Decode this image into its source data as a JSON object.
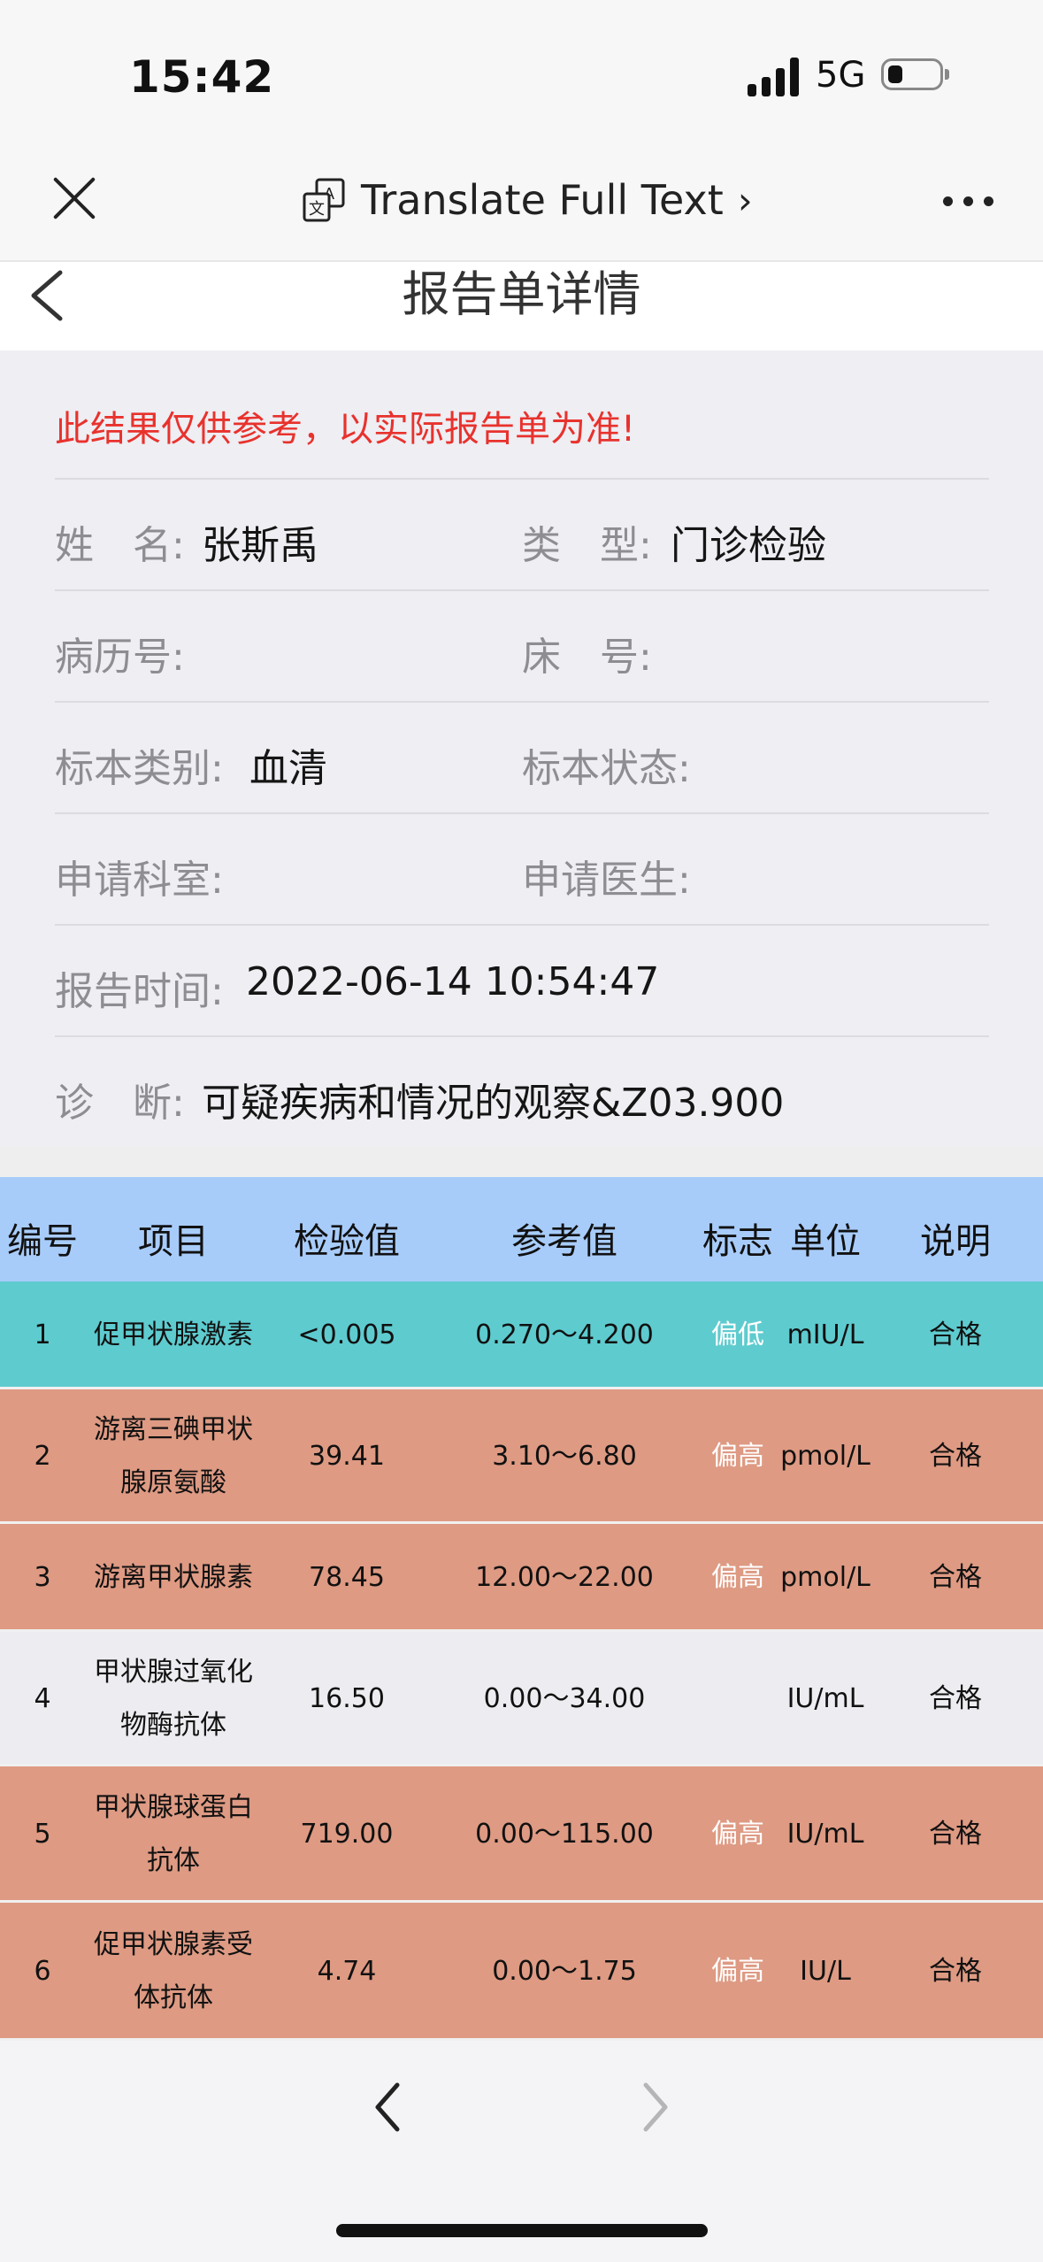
{
  "status_bar": {
    "time": "15:42",
    "network": "5G"
  },
  "nav_bar": {
    "translate_label": "Translate Full Text",
    "translate_chevron": "›"
  },
  "page": {
    "title": "报告单详情",
    "disclaimer": "此结果仅供参考，以实际报告单为准!",
    "fields": {
      "name_label": "姓　名:",
      "name_value": "张斯禹",
      "type_label": "类　型:",
      "type_value": "门诊检验",
      "record_label": "病历号:",
      "record_value": "",
      "bed_label": "床　号:",
      "bed_value": "",
      "specimen_label": "标本类别:",
      "specimen_value": "血清",
      "specimen_state_label": "标本状态:",
      "specimen_state_value": "",
      "dept_label": "申请科室:",
      "dept_value": "",
      "doctor_label": "申请医生:",
      "doctor_value": "",
      "time_label": "报告时间:",
      "time_value": "2022-06-14 10:54:47",
      "diag_label": "诊　断:",
      "diag_value": "可疑疾病和情况的观察&Z03.900"
    }
  },
  "table": {
    "headers": [
      "编号",
      "项目",
      "检验值",
      "参考值",
      "标志",
      "单位",
      "说明"
    ],
    "rows": [
      {
        "no": "1",
        "item1": "促甲状腺激素",
        "item2": "",
        "value": "<0.005",
        "ref": "0.270～4.200",
        "flag": "偏低",
        "unit": "mIU/L",
        "note": "合格",
        "bg": "#5ecbcf"
      },
      {
        "no": "2",
        "item1": "游离三碘甲状",
        "item2": "腺原氨酸",
        "value": "39.41",
        "ref": "3.10～6.80",
        "flag": "偏高",
        "unit": "pmol/L",
        "note": "合格",
        "bg": "#de9a83"
      },
      {
        "no": "3",
        "item1": "游离甲状腺素",
        "item2": "",
        "value": "78.45",
        "ref": "12.00～22.00",
        "flag": "偏高",
        "unit": "pmol/L",
        "note": "合格",
        "bg": "#de9a83"
      },
      {
        "no": "4",
        "item1": "甲状腺过氧化",
        "item2": "物酶抗体",
        "value": "16.50",
        "ref": "0.00～34.00",
        "flag": "",
        "unit": "IU/mL",
        "note": "合格",
        "bg": "#ededf1"
      },
      {
        "no": "5",
        "item1": "甲状腺球蛋白",
        "item2": "抗体",
        "value": "719.00",
        "ref": "0.00～115.00",
        "flag": "偏高",
        "unit": "IU/mL",
        "note": "合格",
        "bg": "#de9a83"
      },
      {
        "no": "6",
        "item1": "促甲状腺素受",
        "item2": "体抗体",
        "value": "4.74",
        "ref": "0.00～1.75",
        "flag": "偏高",
        "unit": "IU/L",
        "note": "合格",
        "bg": "#de9a83"
      }
    ]
  },
  "toolbar": {
    "prev_icon": "chevron-left-icon",
    "next_icon": "chevron-right-icon"
  }
}
